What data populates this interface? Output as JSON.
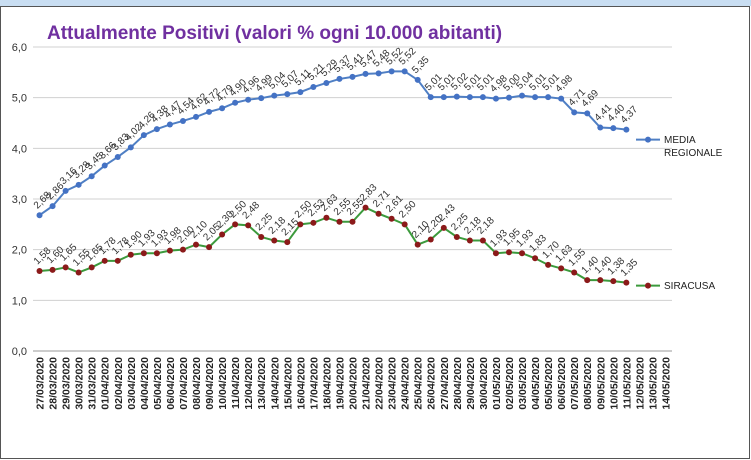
{
  "chart_data": {
    "type": "line",
    "title": "Attualmente Positivi (valori % ogni 10.000 abitanti)",
    "categories": [
      "27/03/2020",
      "28/03/2020",
      "29/03/2020",
      "30/03/2020",
      "31/03/2020",
      "01/04/2020",
      "02/04/2020",
      "03/04/2020",
      "04/04/2020",
      "05/04/2020",
      "06/04/2020",
      "07/04/2020",
      "08/04/2020",
      "09/04/2020",
      "10/04/2020",
      "11/04/2020",
      "12/04/2020",
      "13/04/2020",
      "14/04/2020",
      "15/04/2020",
      "16/04/2020",
      "17/04/2020",
      "18/04/2020",
      "19/04/2020",
      "20/04/2020",
      "21/04/2020",
      "22/04/2020",
      "23/04/2020",
      "24/04/2020",
      "25/04/2020",
      "26/04/2020",
      "27/04/2020",
      "28/04/2020",
      "29/04/2020",
      "30/04/2020",
      "01/05/2020",
      "02/05/2020",
      "03/05/2020",
      "04/05/2020",
      "05/05/2020",
      "06/05/2020",
      "07/05/2020",
      "08/05/2020",
      "09/05/2020",
      "10/05/2020",
      "11/05/2020",
      "12/05/2020",
      "13/05/2020",
      "14/05/2020"
    ],
    "series": [
      {
        "name": "MEDIA REGIONALE",
        "color": "#4f7fc4",
        "marker_color": "#4472c4",
        "values": [
          2.68,
          2.86,
          3.16,
          3.28,
          3.45,
          3.66,
          3.83,
          4.02,
          4.26,
          4.38,
          4.47,
          4.54,
          4.62,
          4.72,
          4.79,
          4.9,
          4.96,
          4.99,
          5.04,
          5.07,
          5.11,
          5.21,
          5.29,
          5.37,
          5.41,
          5.47,
          5.48,
          5.52,
          5.52,
          5.35,
          5.01,
          5.01,
          5.02,
          5.01,
          5.01,
          4.98,
          5.0,
          5.04,
          5.01,
          5.01,
          4.98,
          4.71,
          4.69,
          4.41,
          4.4,
          4.37,
          null,
          null,
          null
        ],
        "value_labels": [
          "2,68",
          "2,86",
          "3,16",
          "3,28",
          "3,45",
          "3,66",
          "3,83",
          "4,02",
          "4,26",
          "4,38",
          "4,47",
          "4,54",
          "4,62",
          "4,72",
          "4,79",
          "4,90",
          "4,96",
          "4,99",
          "5,04",
          "5,07",
          "5,11",
          "5,21",
          "5,29",
          "5,37",
          "5,41",
          "5,47",
          "5,48",
          "5,52",
          "5,52",
          "5,35",
          "5,01",
          "5,01",
          "5,02",
          "5,01",
          "5,01",
          "4,98",
          "5,00",
          "5,04",
          "5,01",
          "5,01",
          "4,98",
          "4,71",
          "4,69",
          "4,41",
          "4,40",
          "4,37",
          null,
          null,
          null
        ]
      },
      {
        "name": "SIRACUSA",
        "color": "#3c9a3c",
        "marker_color": "#8b1a1a",
        "values": [
          1.58,
          1.6,
          1.65,
          1.55,
          1.65,
          1.78,
          1.78,
          1.9,
          1.93,
          1.93,
          1.98,
          2.0,
          2.1,
          2.05,
          2.3,
          2.5,
          2.48,
          2.25,
          2.18,
          2.15,
          2.5,
          2.53,
          2.63,
          2.55,
          2.55,
          2.83,
          2.71,
          2.61,
          2.5,
          2.1,
          2.2,
          2.43,
          2.25,
          2.18,
          2.18,
          1.93,
          1.95,
          1.93,
          1.83,
          1.7,
          1.63,
          1.55,
          1.4,
          1.4,
          1.38,
          1.35,
          null,
          null,
          null
        ],
        "value_labels": [
          "1,58",
          "1,60",
          "1,65",
          "1,55",
          "1,65",
          "1,78",
          "1,78",
          "1,90",
          "1,93",
          "1,93",
          "1,98",
          "2,00",
          "2,10",
          "2,05",
          "2,30",
          "2,50",
          "2,48",
          "2,25",
          "2,18",
          "2,15",
          "2,50",
          "2,53",
          "2,63",
          "2,55",
          "2,55",
          "2,83",
          "2,71",
          "2,61",
          "2,50",
          "2,10",
          "2,20",
          "2,43",
          "2,25",
          "2,18",
          "2,18",
          "1,93",
          "1,95",
          "1,93",
          "1,83",
          "1,70",
          "1,63",
          "1,55",
          "1,40",
          "1,40",
          "1,38",
          "1,35",
          null,
          null,
          null
        ]
      }
    ],
    "ylim": [
      0,
      6
    ],
    "yticks": [
      {
        "value": 0,
        "label": "0,0"
      },
      {
        "value": 1,
        "label": "1,0"
      },
      {
        "value": 2,
        "label": "2,0"
      },
      {
        "value": 3,
        "label": "3,0"
      },
      {
        "value": 4,
        "label": "4,0"
      },
      {
        "value": 5,
        "label": "5,0"
      },
      {
        "value": 6,
        "label": "6,0"
      }
    ],
    "grid": true,
    "legend": "right"
  }
}
